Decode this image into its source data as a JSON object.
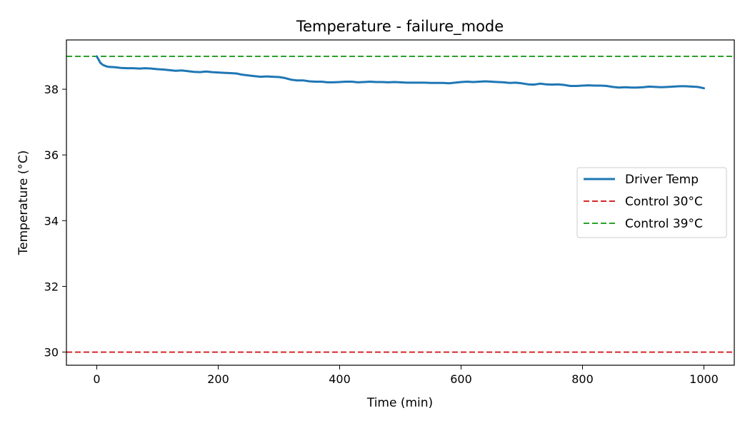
{
  "chart_data": {
    "type": "line",
    "title": "Temperature - failure_mode",
    "xlabel": "Time (min)",
    "ylabel": "Temperature (°C)",
    "xlim": [
      -50,
      1050
    ],
    "ylim": [
      29.6,
      39.5
    ],
    "xticks": [
      0,
      200,
      400,
      600,
      800,
      1000
    ],
    "yticks": [
      30,
      32,
      34,
      36,
      38
    ],
    "grid": false,
    "legend_position": "center-right",
    "series": [
      {
        "name": "Driver Temp",
        "color": "#1f77b4",
        "style": "solid",
        "x": [
          0,
          3,
          6,
          10,
          15,
          20,
          30,
          40,
          50,
          60,
          70,
          80,
          90,
          100,
          110,
          120,
          130,
          140,
          150,
          160,
          170,
          180,
          190,
          200,
          210,
          220,
          230,
          240,
          250,
          260,
          270,
          280,
          290,
          300,
          310,
          320,
          330,
          340,
          350,
          360,
          370,
          380,
          390,
          400,
          410,
          420,
          430,
          440,
          450,
          460,
          470,
          480,
          490,
          500,
          510,
          520,
          530,
          540,
          550,
          560,
          570,
          580,
          590,
          600,
          610,
          620,
          630,
          640,
          650,
          660,
          670,
          680,
          690,
          700,
          710,
          720,
          730,
          740,
          750,
          760,
          770,
          780,
          790,
          800,
          810,
          820,
          830,
          840,
          850,
          860,
          870,
          880,
          890,
          900,
          910,
          920,
          930,
          940,
          950,
          960,
          970,
          980,
          990,
          1000
        ],
        "y": [
          39.0,
          38.9,
          38.8,
          38.74,
          38.7,
          38.68,
          38.67,
          38.65,
          38.64,
          38.64,
          38.63,
          38.64,
          38.63,
          38.61,
          38.6,
          38.58,
          38.56,
          38.57,
          38.55,
          38.53,
          38.52,
          38.54,
          38.52,
          38.51,
          38.5,
          38.49,
          38.48,
          38.44,
          38.42,
          38.4,
          38.38,
          38.39,
          38.38,
          38.37,
          38.34,
          38.29,
          38.27,
          38.27,
          38.24,
          38.23,
          38.23,
          38.21,
          38.21,
          38.22,
          38.23,
          38.23,
          38.21,
          38.22,
          38.23,
          38.22,
          38.22,
          38.21,
          38.22,
          38.21,
          38.2,
          38.2,
          38.2,
          38.2,
          38.19,
          38.19,
          38.19,
          38.18,
          38.2,
          38.22,
          38.23,
          38.22,
          38.23,
          38.24,
          38.23,
          38.22,
          38.21,
          38.19,
          38.2,
          38.18,
          38.15,
          38.14,
          38.17,
          38.15,
          38.14,
          38.15,
          38.13,
          38.1,
          38.1,
          38.11,
          38.12,
          38.11,
          38.11,
          38.1,
          38.07,
          38.05,
          38.06,
          38.05,
          38.05,
          38.06,
          38.08,
          38.07,
          38.06,
          38.07,
          38.08,
          38.09,
          38.09,
          38.08,
          38.07,
          38.03
        ]
      },
      {
        "name": "Control 30°C",
        "color": "#d62728",
        "style": "dashed",
        "hline": 30
      },
      {
        "name": "Control 39°C",
        "color": "#2ca02c",
        "style": "dashed",
        "hline": 39
      }
    ]
  }
}
